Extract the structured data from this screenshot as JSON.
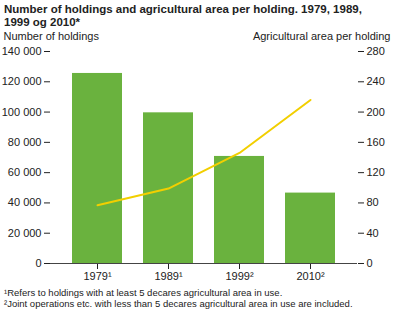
{
  "chart_data": {
    "type": "bar",
    "title": "Number of holdings and agricultural area per holding. 1979, 1989, 1999 og 2010*",
    "categories": [
      "1979¹",
      "1989¹",
      "1999²",
      "2010²"
    ],
    "series": [
      {
        "name": "Number of holdings",
        "type": "bar",
        "color": "#6ab23e",
        "values": [
          125500,
          99500,
          70700,
          46500
        ]
      },
      {
        "name": "Agricultural area per holding",
        "type": "line",
        "axis": "y2",
        "color": "#f2cf00",
        "values": [
          77,
          99,
          146,
          216
        ]
      }
    ],
    "ylim": [
      0,
      140000
    ],
    "yticks": [
      0,
      {
        "value": 20000,
        "label": "20 000"
      },
      {
        "value": 40000,
        "label": "40 000"
      },
      {
        "value": 60000,
        "label": "60 000"
      },
      {
        "value": 80000,
        "label": "80 000"
      },
      {
        "value": 100000,
        "label": "100 000"
      },
      {
        "value": 120000,
        "label": "120 000"
      },
      {
        "value": 140000,
        "label": "140 000"
      }
    ],
    "y2lim": [
      0,
      280
    ],
    "y2ticks": [
      0,
      40,
      80,
      120,
      160,
      200,
      240,
      280
    ],
    "grid": false,
    "notes": [
      "¹Refers to holdings with at least 5 decares agricultural area in use.",
      "²Joint operations etc. with less than 5 decares agricultural area in use are included."
    ]
  }
}
